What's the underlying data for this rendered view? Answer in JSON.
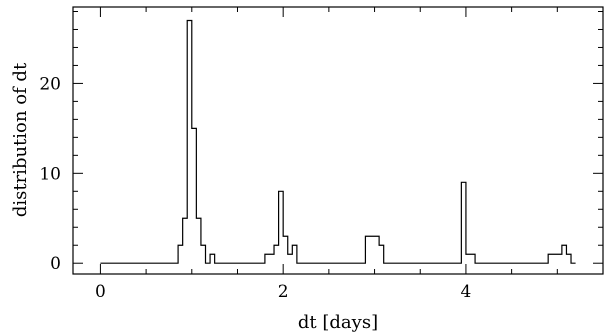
{
  "chart_data": {
    "type": "histogram",
    "xlabel": "dt [days]",
    "ylabel": "distribution of dt",
    "xlim": [
      -0.3,
      5.5
    ],
    "ylim": [
      -1.2,
      28.5
    ],
    "x_ticks": [
      0,
      2,
      4
    ],
    "y_ticks": [
      0,
      10,
      20
    ],
    "grid": false,
    "bin_width": 0.05,
    "bins": [
      {
        "x0": 0.0,
        "x1": 0.85,
        "y": 0
      },
      {
        "x0": 0.85,
        "x1": 0.9,
        "y": 2
      },
      {
        "x0": 0.9,
        "x1": 0.95,
        "y": 5
      },
      {
        "x0": 0.95,
        "x1": 1.0,
        "y": 27
      },
      {
        "x0": 1.0,
        "x1": 1.05,
        "y": 15
      },
      {
        "x0": 1.05,
        "x1": 1.1,
        "y": 5
      },
      {
        "x0": 1.1,
        "x1": 1.15,
        "y": 2
      },
      {
        "x0": 1.15,
        "x1": 1.2,
        "y": 0
      },
      {
        "x0": 1.2,
        "x1": 1.25,
        "y": 1
      },
      {
        "x0": 1.25,
        "x1": 1.8,
        "y": 0
      },
      {
        "x0": 1.8,
        "x1": 1.9,
        "y": 1
      },
      {
        "x0": 1.9,
        "x1": 1.95,
        "y": 2
      },
      {
        "x0": 1.95,
        "x1": 2.0,
        "y": 8
      },
      {
        "x0": 2.0,
        "x1": 2.05,
        "y": 3
      },
      {
        "x0": 2.05,
        "x1": 2.1,
        "y": 1
      },
      {
        "x0": 2.1,
        "x1": 2.15,
        "y": 2
      },
      {
        "x0": 2.15,
        "x1": 2.9,
        "y": 0
      },
      {
        "x0": 2.9,
        "x1": 3.05,
        "y": 3
      },
      {
        "x0": 3.05,
        "x1": 3.1,
        "y": 2
      },
      {
        "x0": 3.1,
        "x1": 3.95,
        "y": 0
      },
      {
        "x0": 3.95,
        "x1": 4.0,
        "y": 9
      },
      {
        "x0": 4.0,
        "x1": 4.1,
        "y": 1
      },
      {
        "x0": 4.1,
        "x1": 4.9,
        "y": 0
      },
      {
        "x0": 4.9,
        "x1": 5.05,
        "y": 1
      },
      {
        "x0": 5.05,
        "x1": 5.1,
        "y": 2
      },
      {
        "x0": 5.1,
        "x1": 5.15,
        "y": 1
      },
      {
        "x0": 5.15,
        "x1": 5.2,
        "y": 0
      }
    ]
  }
}
